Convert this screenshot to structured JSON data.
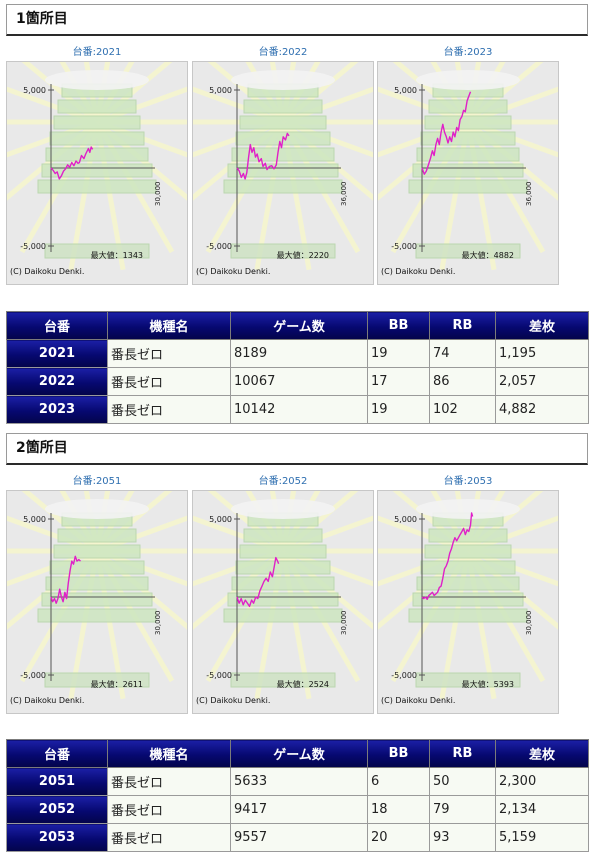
{
  "sections": [
    {
      "title": "1箇所目",
      "graphs": [
        {
          "label": "台番:2021",
          "max_value_label": "最大値：1343",
          "x_axis_label": "30,000",
          "y_top": "5,000",
          "y_bottom": "-5,000",
          "copyright": "(C) Daikoku Denki.",
          "line": [
            [
              0,
              0
            ],
            [
              600,
              -150
            ],
            [
              1200,
              -350
            ],
            [
              1800,
              -250
            ],
            [
              2400,
              -700
            ],
            [
              3000,
              -500
            ],
            [
              3600,
              -200
            ],
            [
              4200,
              -50
            ],
            [
              4800,
              200
            ],
            [
              5400,
              50
            ],
            [
              6000,
              350
            ],
            [
              6600,
              150
            ],
            [
              7200,
              450
            ],
            [
              7800,
              300
            ],
            [
              8200,
              350
            ],
            [
              8800,
              800
            ],
            [
              9500,
              600
            ],
            [
              10000,
              900
            ],
            [
              10800,
              1250
            ],
            [
              11200,
              1000
            ],
            [
              11600,
              1343
            ],
            [
              12000,
              1195
            ]
          ]
        },
        {
          "label": "台番:2022",
          "max_value_label": "最大値：2220",
          "x_axis_label": "36,000",
          "y_top": "5,000",
          "y_bottom": "-5,000",
          "copyright": "(C) Daikoku Denki.",
          "line": [
            [
              0,
              0
            ],
            [
              800,
              -200
            ],
            [
              1500,
              -600
            ],
            [
              2200,
              -350
            ],
            [
              2800,
              -700
            ],
            [
              3400,
              -300
            ],
            [
              4000,
              700
            ],
            [
              4600,
              1500
            ],
            [
              5200,
              1000
            ],
            [
              5800,
              1300
            ],
            [
              6400,
              700
            ],
            [
              7000,
              900
            ],
            [
              7600,
              400
            ],
            [
              8400,
              600
            ],
            [
              9000,
              100
            ],
            [
              9800,
              300
            ],
            [
              10400,
              -100
            ],
            [
              11200,
              100
            ],
            [
              12000,
              150
            ],
            [
              12800,
              -50
            ],
            [
              13600,
              200
            ],
            [
              14200,
              1000
            ],
            [
              14800,
              1700
            ],
            [
              15400,
              1300
            ],
            [
              16000,
              2000
            ],
            [
              16800,
              1800
            ],
            [
              17400,
              2220
            ],
            [
              18000,
              2057
            ]
          ]
        },
        {
          "label": "台番:2023",
          "max_value_label": "最大値：4882",
          "x_axis_label": "36,000",
          "y_top": "5,000",
          "y_bottom": "-5,000",
          "copyright": "(C) Daikoku Denki.",
          "line": [
            [
              0,
              0
            ],
            [
              800,
              -400
            ],
            [
              1500,
              -200
            ],
            [
              2200,
              200
            ],
            [
              2900,
              600
            ],
            [
              3600,
              1100
            ],
            [
              4200,
              800
            ],
            [
              4800,
              1500
            ],
            [
              5400,
              1900
            ],
            [
              6000,
              1500
            ],
            [
              6600,
              2300
            ],
            [
              7200,
              2800
            ],
            [
              7800,
              2300
            ],
            [
              8400,
              2000
            ],
            [
              9000,
              1600
            ],
            [
              9600,
              2000
            ],
            [
              10200,
              1700
            ],
            [
              10800,
              2300
            ],
            [
              11400,
              2000
            ],
            [
              12000,
              2600
            ],
            [
              12600,
              2400
            ],
            [
              13200,
              3100
            ],
            [
              13800,
              3300
            ],
            [
              14400,
              3700
            ],
            [
              15000,
              3600
            ],
            [
              15600,
              4300
            ],
            [
              16200,
              4600
            ],
            [
              16800,
              4882
            ]
          ]
        }
      ],
      "table": {
        "headers": [
          "台番",
          "機種名",
          "ゲーム数",
          "BB",
          "RB",
          "差枚"
        ],
        "rows": [
          {
            "num": "2021",
            "model": "番長ゼロ",
            "games": "8189",
            "bb": "19",
            "rb": "74",
            "diff": "1,195"
          },
          {
            "num": "2022",
            "model": "番長ゼロ",
            "games": "10067",
            "bb": "17",
            "rb": "86",
            "diff": "2,057"
          },
          {
            "num": "2023",
            "model": "番長ゼロ",
            "games": "10142",
            "bb": "19",
            "rb": "102",
            "diff": "4,882"
          }
        ]
      }
    },
    {
      "title": "2箇所目",
      "graphs": [
        {
          "label": "台番:2051",
          "max_value_label": "最大値：2611",
          "x_axis_label": "30,000",
          "y_top": "5,000",
          "y_bottom": "-5,000",
          "copyright": "(C) Daikoku Denki.",
          "line": [
            [
              0,
              0
            ],
            [
              500,
              -300
            ],
            [
              1000,
              -100
            ],
            [
              1500,
              -400
            ],
            [
              2000,
              -100
            ],
            [
              2500,
              500
            ],
            [
              3000,
              0
            ],
            [
              3500,
              -300
            ],
            [
              4000,
              300
            ],
            [
              4500,
              -100
            ],
            [
              5000,
              900
            ],
            [
              5500,
              1700
            ],
            [
              6000,
              2300
            ],
            [
              6500,
              2100
            ],
            [
              7000,
              2611
            ],
            [
              7500,
              2300
            ],
            [
              8000,
              2400
            ],
            [
              8500,
              2300
            ]
          ]
        },
        {
          "label": "台番:2052",
          "max_value_label": "最大値：2524",
          "x_axis_label": "30,000",
          "y_top": "5,000",
          "y_bottom": "-5,000",
          "copyright": "(C) Daikoku Denki.",
          "line": [
            [
              0,
              0
            ],
            [
              600,
              -400
            ],
            [
              1200,
              -100
            ],
            [
              1800,
              -500
            ],
            [
              2400,
              -200
            ],
            [
              3000,
              -400
            ],
            [
              3600,
              -600
            ],
            [
              4200,
              -200
            ],
            [
              4800,
              -400
            ],
            [
              5400,
              0
            ],
            [
              6000,
              -100
            ],
            [
              6600,
              400
            ],
            [
              7200,
              700
            ],
            [
              7800,
              1000
            ],
            [
              8400,
              1200
            ],
            [
              9000,
              1000
            ],
            [
              9600,
              1600
            ],
            [
              10200,
              1300
            ],
            [
              10800,
              2000
            ],
            [
              11200,
              2524
            ],
            [
              11700,
              2300
            ],
            [
              12000,
              2134
            ]
          ]
        },
        {
          "label": "台番:2053",
          "max_value_label": "最大値：5393",
          "x_axis_label": "30,000",
          "y_top": "5,000",
          "y_bottom": "-5,000",
          "copyright": "(C) Daikoku Denki.",
          "line": [
            [
              0,
              0
            ],
            [
              500,
              -100
            ],
            [
              1000,
              0
            ],
            [
              1500,
              -150
            ],
            [
              2000,
              100
            ],
            [
              2500,
              200
            ],
            [
              3000,
              300
            ],
            [
              3500,
              100
            ],
            [
              4000,
              200
            ],
            [
              4500,
              300
            ],
            [
              5000,
              600
            ],
            [
              5500,
              700
            ],
            [
              6000,
              1200
            ],
            [
              6500,
              1800
            ],
            [
              7000,
              2000
            ],
            [
              7500,
              2300
            ],
            [
              8000,
              2800
            ],
            [
              8500,
              3100
            ],
            [
              9000,
              3500
            ],
            [
              9500,
              3800
            ],
            [
              10000,
              3600
            ],
            [
              10500,
              3800
            ],
            [
              11000,
              4000
            ],
            [
              11500,
              4200
            ],
            [
              12000,
              4400
            ],
            [
              12500,
              4000
            ],
            [
              13000,
              4300
            ],
            [
              13500,
              4200
            ],
            [
              14000,
              4600
            ],
            [
              14300,
              5393
            ],
            [
              14600,
              5159
            ]
          ]
        }
      ],
      "table": {
        "headers": [
          "台番",
          "機種名",
          "ゲーム数",
          "BB",
          "RB",
          "差枚"
        ],
        "rows": [
          {
            "num": "2051",
            "model": "番長ゼロ",
            "games": "5633",
            "bb": "6",
            "rb": "50",
            "diff": "2,300"
          },
          {
            "num": "2052",
            "model": "番長ゼロ",
            "games": "9417",
            "bb": "18",
            "rb": "79",
            "diff": "2,134"
          },
          {
            "num": "2053",
            "model": "番長ゼロ",
            "games": "9557",
            "bb": "20",
            "rb": "93",
            "diff": "5,159"
          }
        ]
      }
    }
  ]
}
